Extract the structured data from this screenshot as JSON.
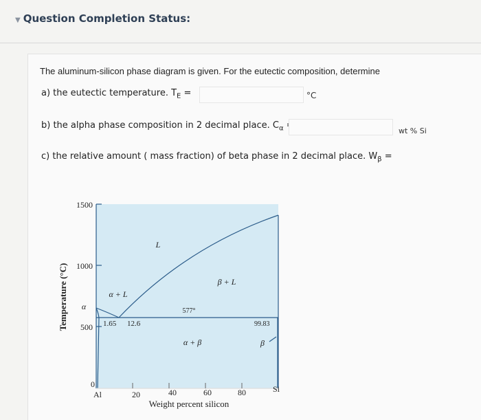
{
  "header": {
    "title": "Question Completion Status:"
  },
  "question": {
    "intro": "The aluminum-silicon phase diagram is given. For the eutectic composition, determine",
    "parts": [
      {
        "text": "a) the eutectic temperature. T",
        "sub": "E",
        "suffix": " =",
        "unit": "°C"
      },
      {
        "text": "b) the alpha phase composition in 2 decimal place. C",
        "sub": "α",
        "suffix": " =",
        "unit": "wt % Si"
      },
      {
        "text": "c) the relative amount ( mass fraction) of beta phase in 2 decimal place. W",
        "sub": "β",
        "suffix": " ="
      }
    ]
  },
  "diagram": {
    "y_axis_title": "Temperature (°C)",
    "x_axis_title": "Weight percent silicon",
    "y_labels": [
      "1500",
      "1000",
      "500",
      "0"
    ],
    "x_labels": [
      "Al",
      "20",
      "40",
      "60",
      "80",
      "Si"
    ],
    "regions": [
      "L",
      "α + L",
      "β + L",
      "α + β",
      "α",
      "β"
    ],
    "points": [
      "577°",
      "1.65",
      "12.6",
      "99.83"
    ]
  }
}
